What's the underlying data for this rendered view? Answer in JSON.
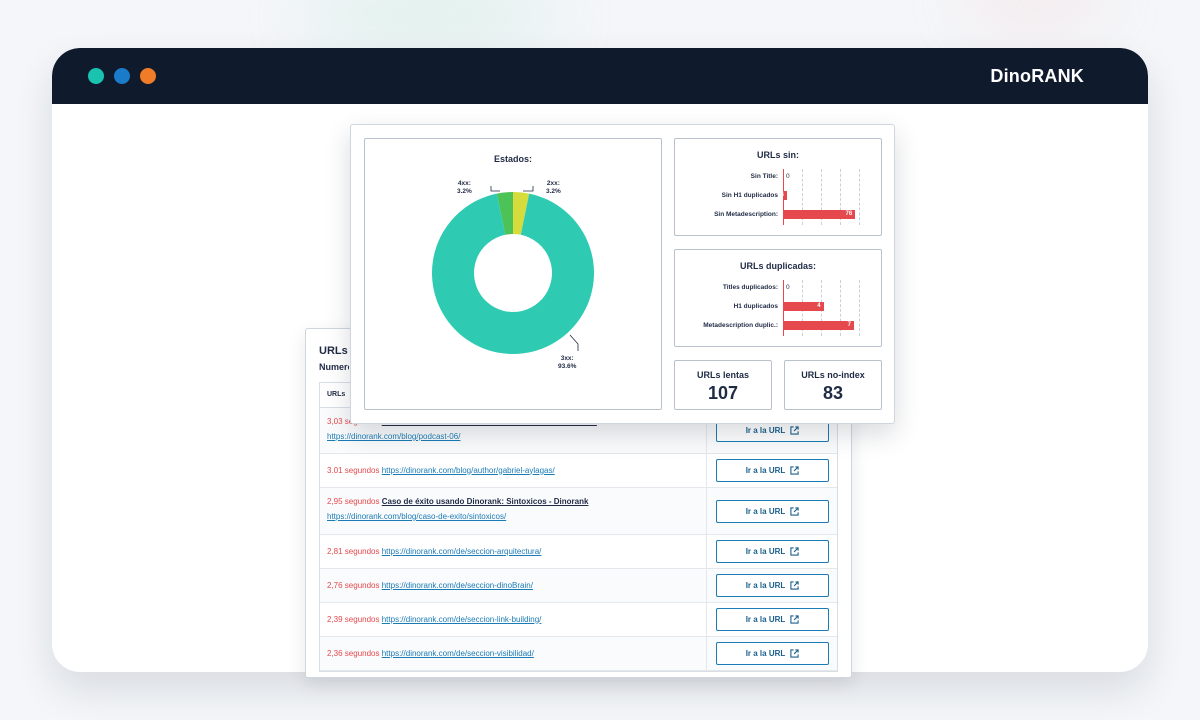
{
  "app": {
    "brand": "DinoRANK"
  },
  "window_dots": [
    "#19c3b0",
    "#1a7bc8",
    "#f07c28"
  ],
  "back_panel": {
    "title": "URLs",
    "subtitle": "Numero",
    "table_header": "URLs",
    "button_label": "Ir a la URL",
    "rows": [
      {
        "time": "3,03 segundos",
        "title": "Canibalizaciones en modo Dios con Dinorank - Dinorank",
        "url": "https://dinorank.com/blog/podcast-06/"
      },
      {
        "time": "3.01 segundos",
        "title": "",
        "url": "https://dinorank.com/blog/author/gabriel-aylagas/"
      },
      {
        "time": "2,95 segundos",
        "title": "Caso de éxito usando Dinorank: Sintoxicos - Dinorank",
        "url": "https://dinorank.com/blog/caso-de-exito/sintoxicos/"
      },
      {
        "time": "2,81 segundos",
        "title": "",
        "url": "https://dinorank.com/de/seccion-arquitectura/"
      },
      {
        "time": "2,76 segundos",
        "title": "",
        "url": "https://dinorank.com/de/seccion-dinoBrain/"
      },
      {
        "time": "2,39 segundos",
        "title": "",
        "url": "https://dinorank.com/de/seccion-link-building/"
      },
      {
        "time": "2,36 segundos",
        "title": "",
        "url": "https://dinorank.com/de/seccion-visibilidad/"
      }
    ]
  },
  "estados": {
    "title": "Estados:",
    "labels": [
      {
        "name": "4xx:",
        "pct": "3.2%"
      },
      {
        "name": "2xx:",
        "pct": "3.2%"
      },
      {
        "name": "3xx:",
        "pct": "93.6%"
      }
    ]
  },
  "urls_sin": {
    "title": "URLs sin:",
    "items": [
      {
        "label": "Sin Title:",
        "value": "0"
      },
      {
        "label": "Sin H1 duplicados",
        "value": "4"
      },
      {
        "label": "Sin Metadescription:",
        "value": "76"
      }
    ]
  },
  "urls_duplicadas": {
    "title": "URLs duplicadas:",
    "items": [
      {
        "label": "Titles duplicados:",
        "value": "0"
      },
      {
        "label": "H1 duplicados",
        "value": "4"
      },
      {
        "label": "Metadescription duplic.:",
        "value": "7"
      }
    ]
  },
  "metrics": {
    "lentas": {
      "label": "URLs lentas",
      "value": "107"
    },
    "noindex": {
      "label": "URLs no-index",
      "value": "83"
    }
  },
  "chart_data": [
    {
      "type": "pie",
      "title": "Estados:",
      "categories": [
        "4xx",
        "2xx",
        "3xx"
      ],
      "values": [
        3.2,
        3.2,
        93.6
      ],
      "colors": [
        "#4cc257",
        "#d6dc3c",
        "#2ecbb2"
      ]
    },
    {
      "type": "bar",
      "title": "URLs sin:",
      "categories": [
        "Sin Title:",
        "Sin H1 duplicados",
        "Sin Metadescription:"
      ],
      "values": [
        0,
        4,
        76
      ],
      "xlim": [
        0,
        80
      ],
      "color": "#e5484d"
    },
    {
      "type": "bar",
      "title": "URLs duplicadas:",
      "categories": [
        "Titles duplicados:",
        "H1 duplicados",
        "Metadescription duplic.:"
      ],
      "values": [
        0,
        4,
        7
      ],
      "xlim": [
        0,
        7.5
      ],
      "color": "#e5484d"
    }
  ]
}
